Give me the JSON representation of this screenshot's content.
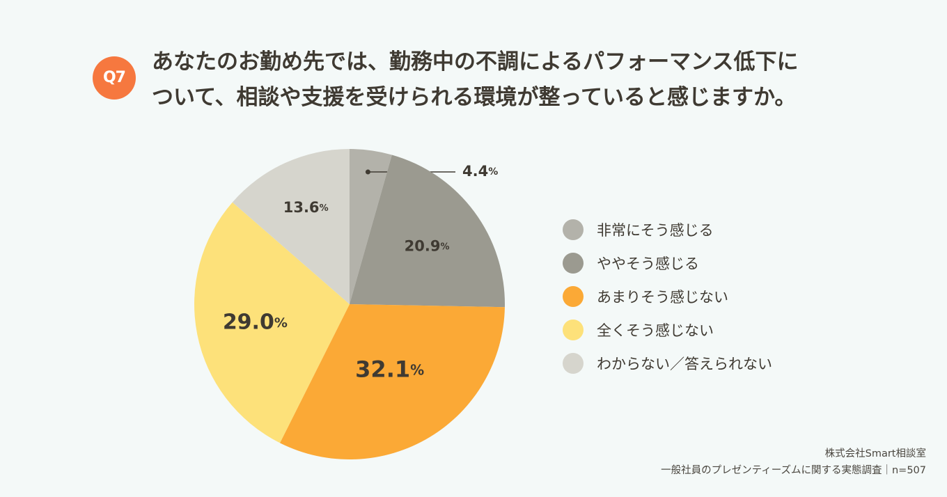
{
  "question": {
    "badge": "Q7",
    "line1": "あなたのお勤め先では、勤務中の不調によるパフォーマンス低下に",
    "line2": "ついて、相談や支援を受けられる環境が整っていると感じますか。"
  },
  "chart_data": {
    "type": "pie",
    "title": "あなたのお勤め先では、勤務中の不調によるパフォーマンス低下について、相談や支援を受けられる環境が整っていると感じますか。",
    "unit": "%",
    "categories": [
      "非常にそう感じる",
      "ややそう感じる",
      "あまりそう感じない",
      "全くそう感じない",
      "わからない／答えられない"
    ],
    "values": [
      4.4,
      20.9,
      32.1,
      29.0,
      13.6
    ],
    "labels": [
      "4.4",
      "20.9",
      "32.1",
      "29.0",
      "13.6"
    ],
    "colors": [
      "#b3b2aa",
      "#9b9a90",
      "#fba936",
      "#fde17a",
      "#d6d5cd"
    ],
    "start": "12 o'clock, clockwise",
    "legend": "right"
  },
  "credit": {
    "line1": "株式会社Smart相談室",
    "line2": "一般社員のプレゼンティーズムに関する実態調査｜n=507"
  }
}
